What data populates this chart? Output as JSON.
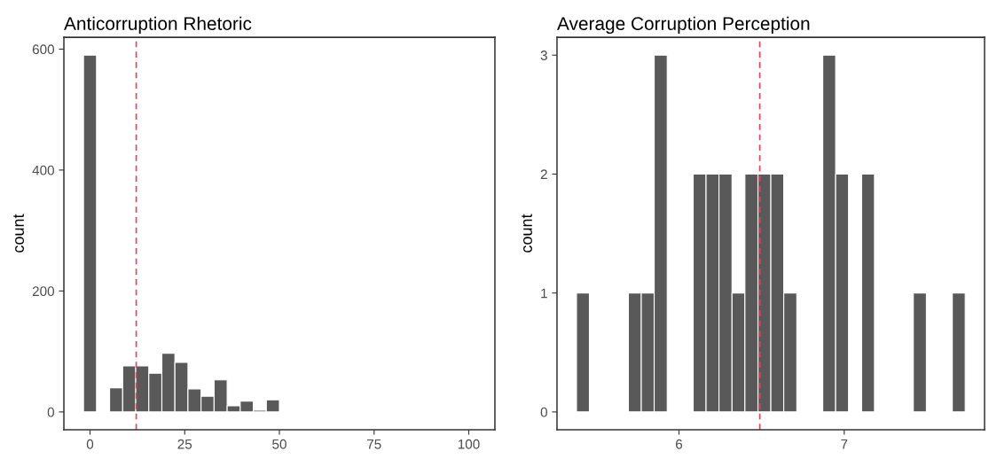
{
  "chart_data": [
    {
      "type": "histogram",
      "title": "Anticorruption Rhetoric",
      "ylabel": "count",
      "color": "#595959",
      "bins": [
        -1.72,
        1.72,
        5.17,
        8.62,
        12.07,
        15.52,
        18.97,
        22.41,
        25.86,
        29.31,
        32.76,
        36.21,
        39.66,
        43.1,
        46.55,
        50.0,
        53.45,
        56.9,
        60.34,
        63.79,
        67.24,
        70.69,
        74.14,
        77.59,
        81.03,
        84.48,
        87.93,
        91.38,
        94.83,
        98.28,
        101.72
      ],
      "values": [
        590,
        0,
        40,
        76,
        76,
        64,
        97,
        82,
        38,
        26,
        53,
        10,
        18,
        3,
        20,
        0,
        0,
        1,
        0,
        1,
        0,
        0,
        0,
        0,
        0,
        0,
        0,
        0,
        0,
        0
      ],
      "xlim": [
        -6.9,
        106.9
      ],
      "xticks": [
        0,
        25,
        50,
        75,
        100
      ],
      "ylim": [
        -29.5,
        619.5
      ],
      "yticks": [
        0,
        200,
        400,
        600
      ],
      "grid": false,
      "ref_lines": [
        {
          "axis": "x",
          "value": 12.2,
          "color": "#e8405e",
          "line_style": "dashed"
        }
      ]
    },
    {
      "type": "histogram",
      "title": "Average Corruption Perception",
      "ylabel": "count",
      "color": "#595959",
      "bins": [
        5.38,
        5.458,
        5.537,
        5.615,
        5.694,
        5.772,
        5.85,
        5.929,
        6.007,
        6.086,
        6.164,
        6.242,
        6.321,
        6.399,
        6.478,
        6.556,
        6.634,
        6.713,
        6.791,
        6.87,
        6.948,
        7.026,
        7.105,
        7.183,
        7.262,
        7.34,
        7.418,
        7.497,
        7.575,
        7.654,
        7.732
      ],
      "values": [
        1,
        0,
        0,
        0,
        1,
        1,
        3,
        0,
        0,
        2,
        2,
        2,
        1,
        2,
        2,
        2,
        1,
        0,
        0,
        3,
        2,
        0,
        2,
        0,
        0,
        0,
        1,
        0,
        0,
        1
      ],
      "xlim": [
        5.262,
        7.849
      ],
      "xticks": [
        6,
        7
      ],
      "ylim": [
        -0.15,
        3.15
      ],
      "yticks": [
        0,
        1,
        2,
        3
      ],
      "grid": false,
      "ref_lines": [
        {
          "axis": "x",
          "value": 6.489,
          "color": "#e8405e",
          "line_style": "dashed"
        }
      ]
    }
  ]
}
